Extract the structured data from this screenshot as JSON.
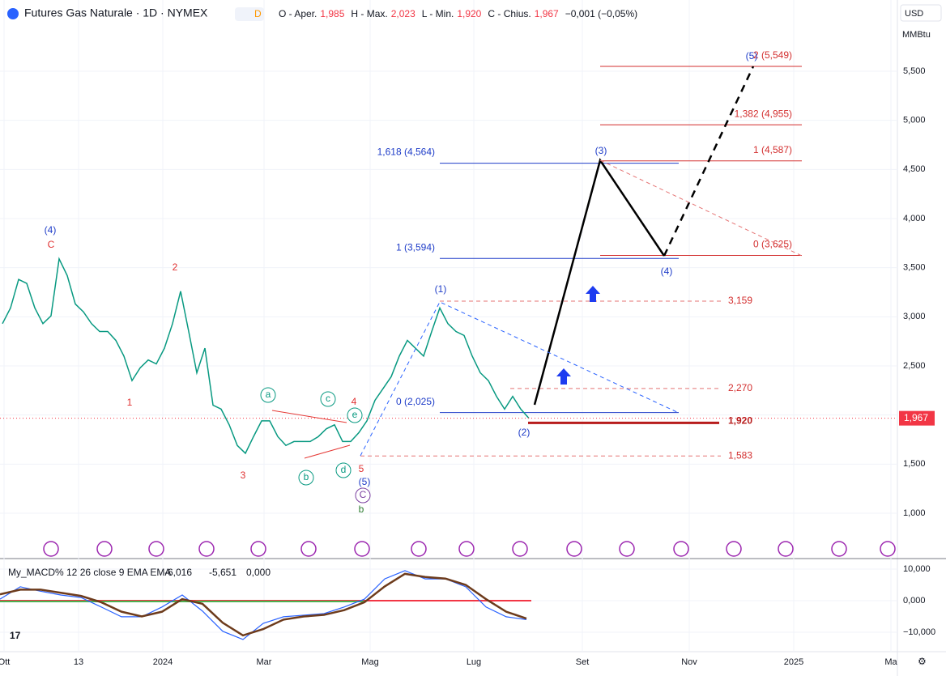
{
  "header": {
    "title": "Futures Gas Naturale · 1D · NYMEX",
    "badge": "D",
    "ohlc": [
      "O - Aper.",
      "1,985",
      "H - Max.",
      "2,023",
      "L - Min.",
      "1,920",
      "C - Chius.",
      "1,967",
      "−0,001 (−0,05%)"
    ],
    "currency": "USD",
    "unit": "MMBtu"
  },
  "price": {
    "ticks": [
      {
        "value": 1.0,
        "label": "1,000"
      },
      {
        "value": 1.5,
        "label": "1,500"
      },
      {
        "value": 2.0,
        "label": "2,000"
      },
      {
        "value": 2.5,
        "label": "2,500"
      },
      {
        "value": 3.0,
        "label": "3,000"
      },
      {
        "value": 3.5,
        "label": "3,500"
      },
      {
        "value": 4.0,
        "label": "4,000"
      },
      {
        "value": 4.5,
        "label": "4,500"
      },
      {
        "value": 5.0,
        "label": "5,000"
      },
      {
        "value": 5.5,
        "label": "5,500"
      }
    ],
    "last": {
      "value": 1.967,
      "label": "1,967"
    },
    "closes": [
      2.93,
      3.09,
      3.38,
      3.34,
      3.09,
      2.93,
      3.01,
      3.59,
      3.42,
      3.13,
      3.05,
      2.93,
      2.85,
      2.85,
      2.76,
      2.6,
      2.35,
      2.48,
      2.56,
      2.52,
      2.68,
      2.93,
      3.26,
      2.85,
      2.43,
      2.68,
      2.1,
      2.06,
      1.9,
      1.69,
      1.61,
      1.78,
      1.94,
      1.94,
      1.78,
      1.69,
      1.73,
      1.73,
      1.73,
      1.78,
      1.86,
      1.9,
      1.73,
      1.73,
      1.82,
      1.94,
      2.15,
      2.27,
      2.39,
      2.6,
      2.76,
      2.68,
      2.6,
      2.85,
      3.09,
      2.93,
      2.85,
      2.81,
      2.6,
      2.43,
      2.35,
      2.19,
      2.06,
      2.19,
      2.06,
      1.967
    ]
  },
  "fib_levels": [
    {
      "label": "1,618 (4,564)",
      "value": 4.564
    },
    {
      "label": "1 (3,594)",
      "value": 3.594
    },
    {
      "label": "0 (2,025)",
      "value": 2.025
    },
    {
      "label": "2 (5,549)",
      "value": 5.549
    },
    {
      "label": "1,382 (4,955)",
      "value": 4.955
    },
    {
      "label": "1 (4,587)",
      "value": 4.587
    },
    {
      "label": "0 (3,625)",
      "value": 3.625
    }
  ],
  "levels": [
    {
      "label": "3,159",
      "value": 3.159
    },
    {
      "label": "2,270",
      "value": 2.27
    },
    {
      "label": "1,583",
      "value": 1.583
    },
    {
      "label": "1,920",
      "value": 1.92
    }
  ],
  "wave_labels": [
    "(4)",
    "C",
    "2",
    "1",
    "3",
    "4",
    "5",
    "(5)",
    "C",
    "b",
    "(1)",
    "(2)",
    "(3)",
    "(4)",
    "(5)",
    "a",
    "b",
    "c",
    "d",
    "e"
  ],
  "time_axis": [
    "Ott",
    "13",
    "2024",
    "Mar",
    "Mag",
    "Lug",
    "Set",
    "Nov",
    "2025",
    "Ma"
  ],
  "macd": {
    "title": "My_MACD% 12 26 close 9 EMA EMA",
    "readouts": [
      "-6,016",
      "-5,651",
      "0,000"
    ],
    "ticks": [
      {
        "value": 10,
        "label": "10,000"
      },
      {
        "value": 0,
        "label": "0,000"
      },
      {
        "value": -10,
        "label": "−10,000"
      }
    ],
    "macd": [
      0.5,
      4.4,
      3.0,
      1.8,
      1.0,
      -2.0,
      -5.1,
      -5.1,
      -2.0,
      1.8,
      -3.3,
      -9.7,
      -12.3,
      -7.2,
      -5.1,
      -4.6,
      -4.1,
      -2.0,
      0.5,
      6.9,
      9.5,
      6.9,
      6.9,
      4.4,
      -2.0,
      -5.1,
      -6.0
    ],
    "signal": [
      2.0,
      3.5,
      3.5,
      2.5,
      1.5,
      -0.5,
      -3.5,
      -5.0,
      -3.5,
      0.5,
      -1.0,
      -7.0,
      -11.0,
      -9.0,
      -6.0,
      -5.0,
      -4.5,
      -3.0,
      -0.5,
      4.5,
      8.5,
      7.5,
      7.0,
      5.0,
      0.5,
      -3.5,
      -5.651
    ]
  }
}
